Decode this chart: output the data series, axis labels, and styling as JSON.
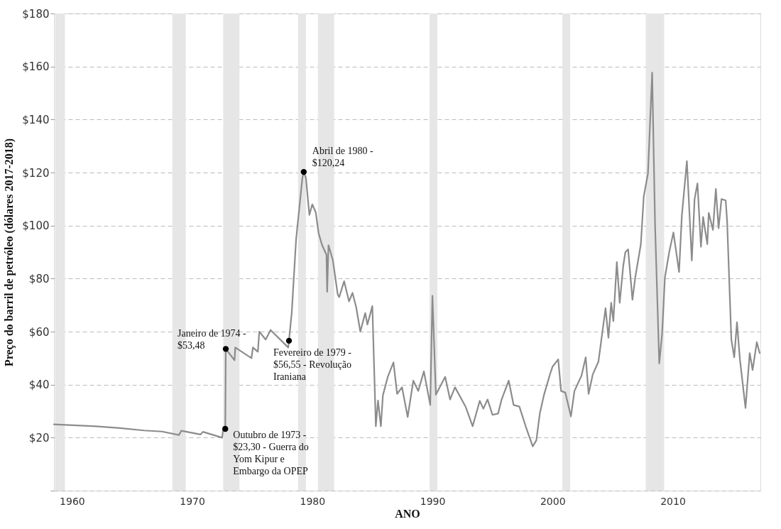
{
  "chart_data": {
    "type": "line",
    "xlabel": "ANO",
    "ylabel": "Preço do barril de petróleo (dólares 2017-2018)",
    "xlim": [
      1958.5,
      2017.3
    ],
    "xticks": [
      1960,
      1970,
      1980,
      1990,
      2000,
      2010
    ],
    "ylim": [
      0,
      180
    ],
    "yticks": [
      {
        "value": 0,
        "label": null
      },
      {
        "value": 20,
        "label": "$20"
      },
      {
        "value": 40,
        "label": "$40"
      },
      {
        "value": 60,
        "label": "$60"
      },
      {
        "value": 80,
        "label": "$80"
      },
      {
        "value": 100,
        "label": "$100"
      },
      {
        "value": 120,
        "label": "$120"
      },
      {
        "value": 140,
        "label": "$140"
      },
      {
        "value": 160,
        "label": "$160"
      },
      {
        "value": 180,
        "label": "$180"
      }
    ],
    "grid": "y",
    "line_style": "solid",
    "marker": "none",
    "series": [
      {
        "color": "#8c8c8c",
        "x": [
          1958.5,
          1962,
          1964,
          1966,
          1967.5,
          1968.9,
          1969.1,
          1970.7,
          1970.9,
          1972.5,
          1972.6,
          1972.76,
          1972.8,
          1973.53,
          1973.59,
          1974.94,
          1975.06,
          1975.47,
          1975.59,
          1976.12,
          1976.53,
          1978.0,
          1978.06,
          1978.29,
          1978.65,
          1978.88,
          1979.18,
          1979.29,
          1979.47,
          1979.76,
          1980.0,
          1980.29,
          1980.53,
          1980.82,
          1981.18,
          1981.24,
          1981.35,
          1981.71,
          1982.12,
          1982.24,
          1982.65,
          1983.06,
          1983.35,
          1983.65,
          1984.0,
          1984.41,
          1984.59,
          1985.0,
          1985.29,
          1985.47,
          1985.71,
          1985.88,
          1986.29,
          1986.76,
          1987.06,
          1987.47,
          1987.94,
          1988.41,
          1988.82,
          1989.29,
          1989.82,
          1990.0,
          1990.29,
          1991.06,
          1991.47,
          1991.88,
          1992.76,
          1993.35,
          1993.94,
          1994.24,
          1994.59,
          1995.0,
          1995.47,
          1995.76,
          1996.35,
          1996.76,
          1997.24,
          1997.76,
          1998.35,
          1998.65,
          1998.94,
          1999.29,
          1999.82,
          2000.0,
          2000.47,
          2000.71,
          2001.06,
          2001.53,
          2001.82,
          2002.41,
          2002.76,
          2003.0,
          2003.35,
          2003.82,
          2004.41,
          2004.65,
          2004.88,
          2005.06,
          2005.35,
          2005.59,
          2005.88,
          2006.06,
          2006.29,
          2006.65,
          2006.88,
          2007.35,
          2007.59,
          2007.94,
          2008.29,
          2008.53,
          2008.88,
          2009.12,
          2009.35,
          2009.71,
          2010.06,
          2010.53,
          2010.76,
          2011.18,
          2011.59,
          2011.82,
          2012.06,
          2012.35,
          2012.53,
          2012.88,
          2013.0,
          2013.35,
          2013.59,
          2013.82,
          2014.06,
          2014.41,
          2014.53,
          2014.88,
          2015.12,
          2015.35,
          2015.59,
          2016.06,
          2016.41,
          2016.65,
          2017.0,
          2017.24
        ],
        "values": [
          25.0,
          24.3,
          23.6,
          22.7,
          22.3,
          21.0,
          22.6,
          21.2,
          22.2,
          20.0,
          24.0,
          23.3,
          53.5,
          49.2,
          54,
          50,
          54,
          52.4,
          60,
          57,
          60.6,
          54,
          56.6,
          67,
          94.5,
          104.8,
          118,
          120.2,
          118,
          104,
          108,
          105,
          97,
          92.6,
          89,
          75,
          92.6,
          87,
          74,
          73,
          79,
          71.4,
          74.6,
          69.3,
          60,
          67,
          62.7,
          69.6,
          24.3,
          34,
          24.3,
          36,
          43,
          48.4,
          36.5,
          39,
          27.8,
          41.5,
          37.6,
          45,
          32.3,
          73.5,
          36.2,
          42.9,
          34.4,
          39,
          31.7,
          24.3,
          33.9,
          30.9,
          34.4,
          28.6,
          29.1,
          34.4,
          41.5,
          32.3,
          31.7,
          24.3,
          16.7,
          19,
          29.1,
          36.2,
          44.4,
          46.8,
          49.5,
          37.6,
          37,
          28,
          37.6,
          43.4,
          50.3,
          36.5,
          43.9,
          48.7,
          68.8,
          57.7,
          70.9,
          64,
          86.2,
          70.9,
          84.7,
          90,
          91,
          72,
          80.4,
          93,
          111,
          119.6,
          157.7,
          100.5,
          48,
          59.3,
          80.4,
          90,
          97.4,
          82.5,
          103.7,
          124.3,
          86.8,
          110,
          115.9,
          92,
          103.2,
          93,
          104.8,
          98.4,
          113.8,
          99,
          110,
          109.5,
          101.6,
          57.1,
          50.3,
          63.5,
          49.7,
          31.2,
          51.9,
          45.5,
          56,
          51.9
        ]
      }
    ],
    "bands": [
      {
        "axis": "x",
        "from": 1958.59,
        "to": 1959.41,
        "color": "#e6e6e6"
      },
      {
        "axis": "x",
        "from": 1968.35,
        "to": 1969.47,
        "color": "#e6e6e6"
      },
      {
        "axis": "x",
        "from": 1972.59,
        "to": 1973.94,
        "color": "#e6e6e6"
      },
      {
        "axis": "x",
        "from": 1978.82,
        "to": 1979.47,
        "color": "#e6e6e6"
      },
      {
        "axis": "x",
        "from": 1980.47,
        "to": 1981.82,
        "color": "#e6e6e6"
      },
      {
        "axis": "x",
        "from": 1989.76,
        "to": 1990.41,
        "color": "#e6e6e6"
      },
      {
        "axis": "x",
        "from": 2000.82,
        "to": 2001.47,
        "color": "#e6e6e6"
      },
      {
        "axis": "x",
        "from": 2007.76,
        "to": 2009.29,
        "color": "#e6e6e6"
      }
    ],
    "annotations": [
      {
        "text": "Outubro de 1973 -\n$23,30 - Guerra do\nYom Kipur e\nEmbargo da OPEP",
        "x": 1972.76,
        "y": 23.3
      },
      {
        "text": "Janeiro de 1974 -\n$53,48",
        "x": 1972.8,
        "y": 53.48
      },
      {
        "text": "Fevereiro de 1979 -\n$56,55 - Revolução\nIraniana",
        "x": 1978.06,
        "y": 56.55
      },
      {
        "text": "Abril de 1980 -\n$120,24",
        "x": 1979.29,
        "y": 120.24
      }
    ]
  }
}
